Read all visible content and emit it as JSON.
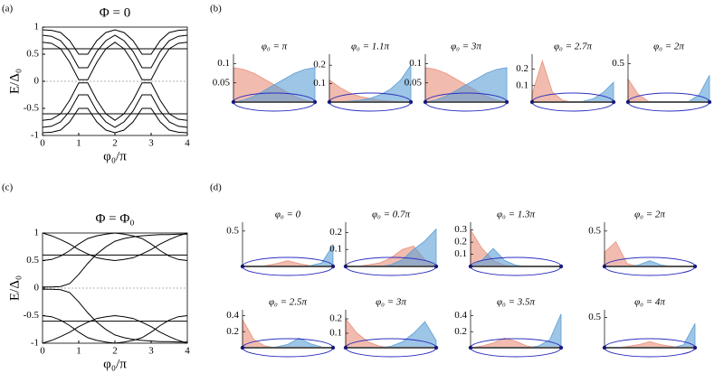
{
  "panel_labels": [
    "(a)",
    "(b)",
    "(c)",
    "(d)"
  ],
  "chart_data": [
    {
      "type": "line",
      "title": "Φ = 0",
      "x_label": "φ₀/π",
      "y_label": "E/Δ₀",
      "x": [
        0,
        0.25,
        0.5,
        0.75,
        1,
        1.25,
        1.5,
        1.75,
        2,
        2.25,
        2.5,
        2.75,
        3,
        3.25,
        3.5,
        3.75,
        4
      ],
      "xlim": [
        0,
        4
      ],
      "ylim": [
        -1,
        1
      ],
      "xticks": [
        0,
        1,
        2,
        3,
        4
      ],
      "yticks": [
        -1,
        -0.5,
        0,
        0.5,
        1
      ],
      "ref_line": 0,
      "series": [
        {
          "color": "#000000",
          "values": [
            0.72,
            0.7,
            0.6,
            0.35,
            0.03,
            0.03,
            0.35,
            0.6,
            0.72,
            0.6,
            0.35,
            0.03,
            0.03,
            0.35,
            0.6,
            0.7,
            0.72
          ]
        },
        {
          "color": "#000000",
          "values": [
            0.85,
            0.83,
            0.75,
            0.55,
            0.25,
            0.25,
            0.55,
            0.75,
            0.85,
            0.75,
            0.55,
            0.25,
            0.25,
            0.55,
            0.75,
            0.83,
            0.85
          ]
        },
        {
          "color": "#000000",
          "values": [
            0.95,
            0.94,
            0.9,
            0.75,
            0.5,
            0.5,
            0.75,
            0.9,
            0.95,
            0.9,
            0.75,
            0.5,
            0.5,
            0.75,
            0.9,
            0.94,
            0.95
          ]
        },
        {
          "color": "#000000",
          "values": [
            0.6,
            0.6,
            0.6,
            0.6,
            0.6,
            0.6,
            0.6,
            0.6,
            0.6,
            0.6,
            0.6,
            0.6,
            0.6,
            0.6,
            0.6,
            0.6,
            0.6
          ]
        },
        {
          "color": "#000000",
          "values": [
            -0.72,
            -0.7,
            -0.6,
            -0.35,
            -0.03,
            -0.03,
            -0.35,
            -0.6,
            -0.72,
            -0.6,
            -0.35,
            -0.03,
            -0.03,
            -0.35,
            -0.6,
            -0.7,
            -0.72
          ]
        },
        {
          "color": "#000000",
          "values": [
            -0.85,
            -0.83,
            -0.75,
            -0.55,
            -0.25,
            -0.25,
            -0.55,
            -0.75,
            -0.85,
            -0.75,
            -0.55,
            -0.25,
            -0.25,
            -0.55,
            -0.75,
            -0.83,
            -0.85
          ]
        },
        {
          "color": "#000000",
          "values": [
            -0.95,
            -0.94,
            -0.9,
            -0.75,
            -0.5,
            -0.5,
            -0.75,
            -0.9,
            -0.95,
            -0.9,
            -0.75,
            -0.5,
            -0.5,
            -0.75,
            -0.9,
            -0.94,
            -0.95
          ]
        },
        {
          "color": "#000000",
          "values": [
            -0.6,
            -0.6,
            -0.6,
            -0.6,
            -0.6,
            -0.6,
            -0.6,
            -0.6,
            -0.6,
            -0.6,
            -0.6,
            -0.6,
            -0.6,
            -0.6,
            -0.6,
            -0.6,
            -0.6
          ]
        }
      ]
    },
    {
      "type": "area",
      "title": "φ₀ = π",
      "x": [
        0,
        0.125,
        0.25,
        0.375,
        0.5,
        0.625,
        0.75,
        0.875,
        1
      ],
      "xlim": [
        0,
        1
      ],
      "ylim": [
        0,
        0.12
      ],
      "yticks": [
        0.05,
        0.1
      ],
      "series": [
        {
          "color": "#e8907a",
          "values": [
            0.09,
            0.085,
            0.075,
            0.06,
            0.045,
            0.03,
            0.015,
            0.005,
            0
          ]
        },
        {
          "color": "#5b9fd6",
          "values": [
            0,
            0.005,
            0.015,
            0.03,
            0.045,
            0.06,
            0.075,
            0.085,
            0.09
          ]
        }
      ]
    },
    {
      "type": "area",
      "title": "φ₀ = 1.1π",
      "x": [
        0,
        0.125,
        0.25,
        0.375,
        0.5,
        0.625,
        0.75,
        0.875,
        1
      ],
      "xlim": [
        0,
        1
      ],
      "ylim": [
        0,
        0.25
      ],
      "yticks": [
        0.1,
        0.2
      ],
      "series": [
        {
          "color": "#e8907a",
          "values": [
            0.12,
            0.08,
            0.05,
            0.03,
            0.02,
            0.01,
            0.005,
            0.002,
            0
          ]
        },
        {
          "color": "#5b9fd6",
          "values": [
            0,
            0.002,
            0.005,
            0.01,
            0.02,
            0.04,
            0.07,
            0.12,
            0.2
          ]
        }
      ]
    },
    {
      "type": "area",
      "title": "φ₀ = 3π",
      "x": [
        0,
        0.125,
        0.25,
        0.375,
        0.5,
        0.625,
        0.75,
        0.875,
        1
      ],
      "xlim": [
        0,
        1
      ],
      "ylim": [
        0,
        0.12
      ],
      "yticks": [
        0.05,
        0.1
      ],
      "series": [
        {
          "color": "#e8907a",
          "values": [
            0.09,
            0.085,
            0.075,
            0.06,
            0.045,
            0.03,
            0.015,
            0.005,
            0
          ]
        },
        {
          "color": "#5b9fd6",
          "values": [
            0,
            0.005,
            0.015,
            0.03,
            0.045,
            0.06,
            0.075,
            0.085,
            0.09
          ]
        }
      ]
    },
    {
      "type": "area",
      "title": "φ₀ = 2.7π",
      "x": [
        0,
        0.125,
        0.25,
        0.375,
        0.5,
        0.625,
        0.75,
        0.875,
        1
      ],
      "xlim": [
        0,
        1
      ],
      "ylim": [
        0,
        0.28
      ],
      "yticks": [
        0.1,
        0.2
      ],
      "series": [
        {
          "color": "#e8907a",
          "values": [
            0.05,
            0.25,
            0.06,
            0.01,
            0,
            0,
            0,
            0,
            0
          ]
        },
        {
          "color": "#5b9fd6",
          "values": [
            0,
            0,
            0,
            0,
            0,
            0.005,
            0.02,
            0.06,
            0.12
          ]
        }
      ]
    },
    {
      "type": "area",
      "title": "φ₀ = 2π",
      "x": [
        0,
        0.125,
        0.25,
        0.375,
        0.5,
        0.625,
        0.75,
        0.875,
        1
      ],
      "xlim": [
        0,
        1
      ],
      "ylim": [
        0,
        0.6
      ],
      "yticks": [
        0.5
      ],
      "series": [
        {
          "color": "#e8907a",
          "values": [
            0.3,
            0.1,
            0.01,
            0,
            0,
            0,
            0,
            0,
            0
          ]
        },
        {
          "color": "#5b9fd6",
          "values": [
            0,
            0,
            0,
            0,
            0,
            0,
            0.01,
            0.1,
            0.35
          ]
        }
      ]
    },
    {
      "type": "line",
      "title": "Φ = Φ₀",
      "x_label": "φ₀/π",
      "y_label": "E/Δ₀",
      "x": [
        0,
        0.25,
        0.5,
        0.75,
        1,
        1.25,
        1.5,
        1.75,
        2,
        2.25,
        2.5,
        2.75,
        3,
        3.25,
        3.5,
        3.75,
        4
      ],
      "xlim": [
        0,
        4
      ],
      "ylim": [
        -1,
        1
      ],
      "xticks": [
        0,
        1,
        2,
        3,
        4
      ],
      "yticks": [
        -1,
        -0.5,
        0,
        0.5,
        1
      ],
      "ref_line": 0,
      "series": [
        {
          "color": "#000000",
          "values": [
            0.02,
            0.02,
            0.03,
            0.08,
            0.25,
            0.45,
            0.62,
            0.75,
            0.85,
            0.9,
            0.93,
            0.95,
            0.96,
            0.97,
            0.97,
            0.98,
            0.98
          ]
        },
        {
          "color": "#000000",
          "values": [
            1,
            0.95,
            0.88,
            0.8,
            0.7,
            0.62,
            0.55,
            0.52,
            0.5,
            0.52,
            0.55,
            0.62,
            0.7,
            0.8,
            0.88,
            0.95,
            1
          ]
        },
        {
          "color": "#000000",
          "values": [
            0.5,
            0.52,
            0.58,
            0.68,
            0.8,
            0.9,
            0.95,
            0.98,
            1,
            0.98,
            0.95,
            0.9,
            0.8,
            0.68,
            0.58,
            0.52,
            0.5
          ]
        },
        {
          "color": "#000000",
          "values": [
            0.6,
            0.6,
            0.6,
            0.6,
            0.6,
            0.6,
            0.6,
            0.6,
            0.6,
            0.6,
            0.6,
            0.6,
            0.6,
            0.6,
            0.6,
            0.6,
            0.6
          ]
        },
        {
          "color": "#000000",
          "values": [
            -0.02,
            -0.02,
            -0.03,
            -0.08,
            -0.25,
            -0.45,
            -0.62,
            -0.75,
            -0.85,
            -0.9,
            -0.93,
            -0.95,
            -0.96,
            -0.97,
            -0.97,
            -0.98,
            -0.98
          ]
        },
        {
          "color": "#000000",
          "values": [
            -1,
            -0.95,
            -0.88,
            -0.8,
            -0.7,
            -0.62,
            -0.55,
            -0.52,
            -0.5,
            -0.52,
            -0.55,
            -0.62,
            -0.7,
            -0.8,
            -0.88,
            -0.95,
            -1
          ]
        },
        {
          "color": "#000000",
          "values": [
            -0.5,
            -0.52,
            -0.58,
            -0.68,
            -0.8,
            -0.9,
            -0.95,
            -0.98,
            -1,
            -0.98,
            -0.95,
            -0.9,
            -0.8,
            -0.68,
            -0.58,
            -0.52,
            -0.5
          ]
        },
        {
          "color": "#000000",
          "values": [
            -0.6,
            -0.6,
            -0.6,
            -0.6,
            -0.6,
            -0.6,
            -0.6,
            -0.6,
            -0.6,
            -0.6,
            -0.6,
            -0.6,
            -0.6,
            -0.6,
            -0.6,
            -0.6,
            -0.6
          ]
        }
      ]
    },
    {
      "type": "area",
      "title": "φ₀ = 0",
      "x": [
        0,
        0.125,
        0.25,
        0.375,
        0.5,
        0.625,
        0.75,
        0.875,
        1
      ],
      "xlim": [
        0,
        1
      ],
      "ylim": [
        0,
        0.6
      ],
      "yticks": [
        0.5
      ],
      "series": [
        {
          "color": "#e8907a",
          "values": [
            0,
            0,
            0.01,
            0.04,
            0.08,
            0.04,
            0.01,
            0,
            0
          ]
        },
        {
          "color": "#5b9fd6",
          "values": [
            0,
            0,
            0,
            0,
            0,
            0,
            0.01,
            0.05,
            0.3
          ]
        }
      ]
    },
    {
      "type": "area",
      "title": "φ₀ = 0.7π",
      "x": [
        0,
        0.125,
        0.25,
        0.375,
        0.5,
        0.625,
        0.75,
        0.875,
        1
      ],
      "xlim": [
        0,
        1
      ],
      "ylim": [
        0,
        0.25
      ],
      "yticks": [
        0.1,
        0.2
      ],
      "series": [
        {
          "color": "#e8907a",
          "values": [
            0,
            0,
            0.01,
            0.02,
            0.05,
            0.1,
            0.12,
            0.04,
            0
          ]
        },
        {
          "color": "#5b9fd6",
          "values": [
            0,
            0,
            0,
            0,
            0.01,
            0.04,
            0.1,
            0.15,
            0.22
          ]
        }
      ]
    },
    {
      "type": "area",
      "title": "φ₀ = 1.3π",
      "x": [
        0,
        0.125,
        0.25,
        0.375,
        0.5,
        0.625,
        0.75,
        0.875,
        1
      ],
      "xlim": [
        0,
        1
      ],
      "ylim": [
        0,
        0.35
      ],
      "yticks": [
        0.1,
        0.2,
        0.3
      ],
      "series": [
        {
          "color": "#e8907a",
          "values": [
            0.3,
            0.15,
            0.05,
            0.01,
            0,
            0,
            0,
            0,
            0
          ]
        },
        {
          "color": "#5b9fd6",
          "values": [
            0,
            0.05,
            0.15,
            0.05,
            0.01,
            0,
            0,
            0,
            0
          ]
        }
      ]
    },
    {
      "type": "area",
      "title": "φ₀ = 2π",
      "x": [
        0,
        0.125,
        0.25,
        0.375,
        0.5,
        0.625,
        0.75,
        0.875,
        1
      ],
      "xlim": [
        0,
        1
      ],
      "ylim": [
        0,
        0.6
      ],
      "yticks": [
        0.5
      ],
      "series": [
        {
          "color": "#e8907a",
          "values": [
            0.2,
            0.35,
            0.04,
            0,
            0,
            0,
            0,
            0,
            0
          ]
        },
        {
          "color": "#5b9fd6",
          "values": [
            0,
            0,
            0,
            0.02,
            0.08,
            0.02,
            0,
            0,
            0
          ]
        }
      ]
    },
    {
      "type": "area",
      "title": "φ₀ = 2.5π",
      "x": [
        0,
        0.125,
        0.25,
        0.375,
        0.5,
        0.625,
        0.75,
        0.875,
        1
      ],
      "xlim": [
        0,
        1
      ],
      "ylim": [
        0,
        0.45
      ],
      "yticks": [
        0.2,
        0.4
      ],
      "series": [
        {
          "color": "#e8907a",
          "values": [
            0.35,
            0.1,
            0.02,
            0,
            0,
            0,
            0,
            0,
            0
          ]
        },
        {
          "color": "#5b9fd6",
          "values": [
            0,
            0,
            0,
            0.01,
            0.04,
            0.12,
            0.05,
            0.01,
            0
          ]
        }
      ]
    },
    {
      "type": "area",
      "title": "φ₀ = 3π",
      "x": [
        0,
        0.125,
        0.25,
        0.375,
        0.5,
        0.625,
        0.75,
        0.875,
        1
      ],
      "xlim": [
        0,
        1
      ],
      "ylim": [
        0,
        0.25
      ],
      "yticks": [
        0.1,
        0.2
      ],
      "series": [
        {
          "color": "#e8907a",
          "values": [
            0.2,
            0.1,
            0.04,
            0.01,
            0,
            0,
            0,
            0,
            0
          ]
        },
        {
          "color": "#5b9fd6",
          "values": [
            0,
            0,
            0,
            0,
            0.01,
            0.04,
            0.1,
            0.18,
            0.05
          ]
        }
      ]
    },
    {
      "type": "area",
      "title": "φ₀ = 3.5π",
      "x": [
        0,
        0.125,
        0.25,
        0.375,
        0.5,
        0.625,
        0.75,
        0.875,
        1
      ],
      "xlim": [
        0,
        1
      ],
      "ylim": [
        0,
        0.45
      ],
      "yticks": [
        0.2,
        0.4
      ],
      "series": [
        {
          "color": "#e8907a",
          "values": [
            0,
            0.02,
            0.06,
            0.12,
            0.08,
            0.02,
            0,
            0,
            0
          ]
        },
        {
          "color": "#5b9fd6",
          "values": [
            0,
            0,
            0,
            0,
            0,
            0,
            0.02,
            0.1,
            0.42
          ]
        }
      ]
    },
    {
      "type": "area",
      "title": "φ₀ = 4π",
      "x": [
        0,
        0.125,
        0.25,
        0.375,
        0.5,
        0.625,
        0.75,
        0.875,
        1
      ],
      "xlim": [
        0,
        1
      ],
      "ylim": [
        0,
        0.6
      ],
      "yticks": [
        0.5
      ],
      "series": [
        {
          "color": "#e8907a",
          "values": [
            0,
            0,
            0.02,
            0.05,
            0.1,
            0.05,
            0.02,
            0,
            0
          ]
        },
        {
          "color": "#5b9fd6",
          "values": [
            0,
            0,
            0,
            0,
            0,
            0,
            0,
            0.05,
            0.4
          ]
        }
      ]
    }
  ]
}
